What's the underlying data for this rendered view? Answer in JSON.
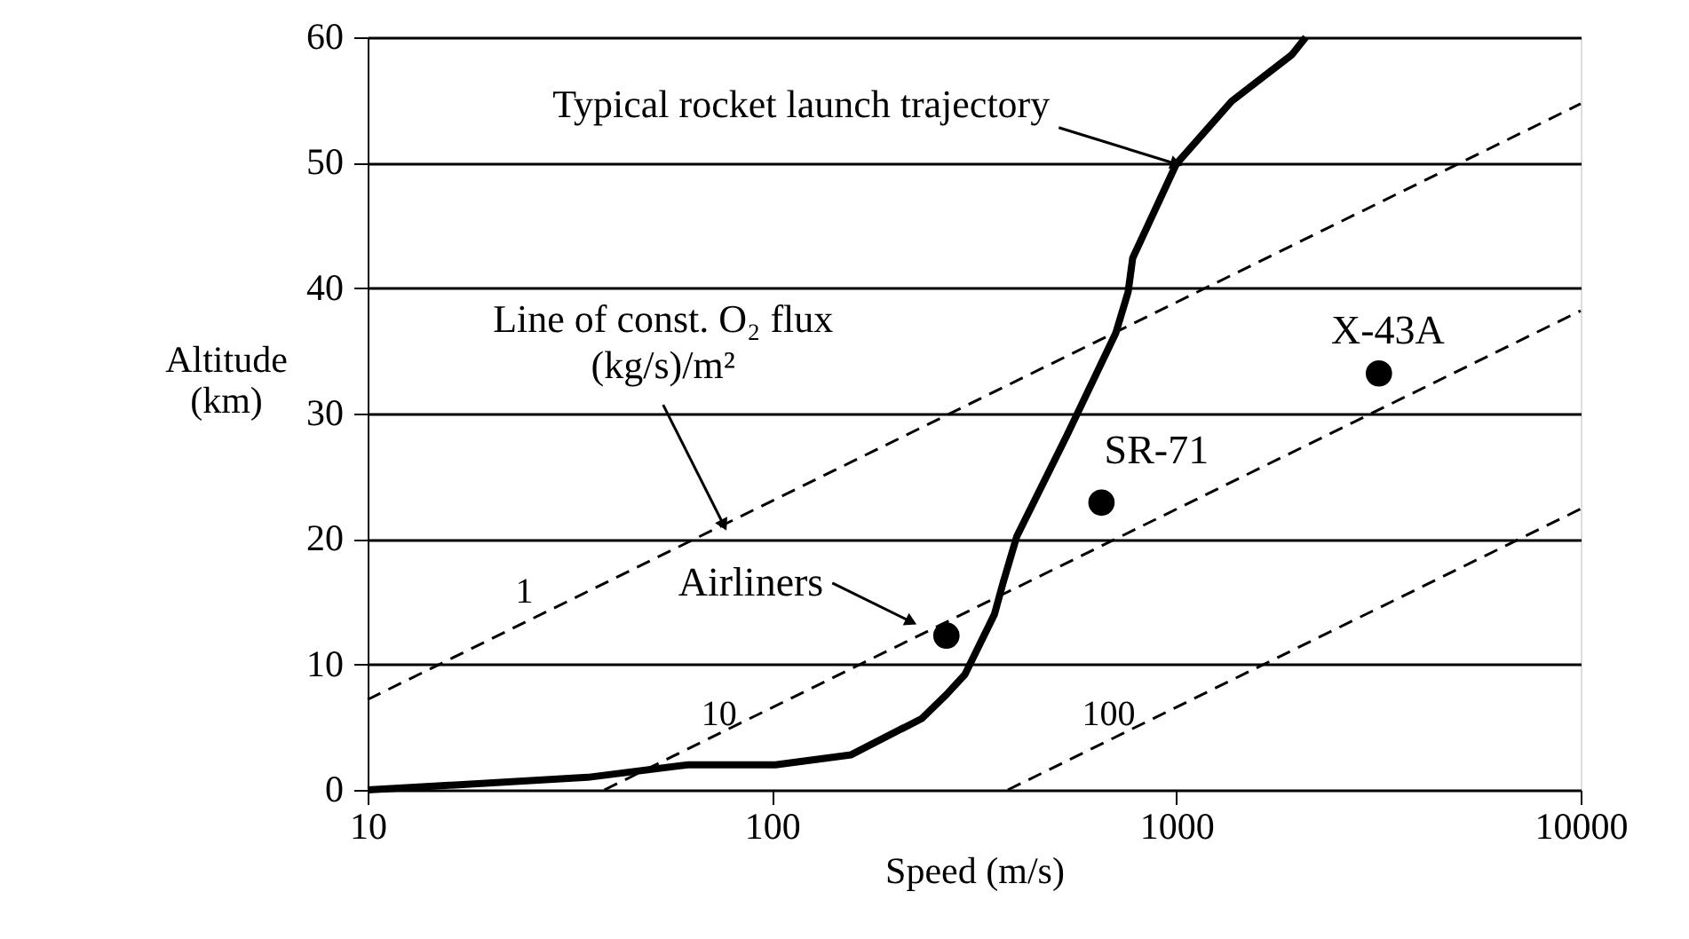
{
  "chart_data": {
    "type": "line",
    "xlabel": "Speed (m/s)",
    "ylabel": "Altitude (km)",
    "log": "x",
    "xlim": [
      10,
      10000
    ],
    "xticks": [
      10,
      100,
      1000,
      10000
    ],
    "ylim": [
      0,
      60
    ],
    "yticks": [
      0,
      10,
      20,
      30,
      40,
      50,
      60
    ],
    "grid": "y",
    "series": [
      {
        "color": "#000000",
        "line_style": "solid",
        "x": [
          10,
          35,
          62,
          102,
          157,
          235,
          270,
          300,
          355,
          372,
          403,
          537,
          708,
          760,
          780,
          1000,
          1370,
          1930,
          2090
        ],
        "values": [
          0,
          1,
          2,
          2,
          2.8,
          5.7,
          7.6,
          9.2,
          14,
          16.4,
          20.2,
          28.3,
          36.4,
          39.7,
          42.4,
          49.9,
          54.9,
          58.6,
          60
        ]
      },
      {
        "name": "1",
        "color": "#000000",
        "line_style": "dashed",
        "x": [
          10,
          10000
        ],
        "values": [
          7.2,
          54.7
        ]
      },
      {
        "name": "10",
        "color": "#000000",
        "line_style": "dashed",
        "x": [
          38.5,
          10000
        ],
        "values": [
          0,
          38.2
        ]
      },
      {
        "name": "100",
        "color": "#000000",
        "line_style": "dashed",
        "x": [
          383,
          10000
        ],
        "values": [
          0,
          22.4
        ]
      },
      {
        "type": "scatter",
        "marker": "circle",
        "color": "#000000",
        "x": [
          270,
          653,
          3170
        ],
        "values": [
          12.3,
          22.9,
          33.2
        ]
      }
    ],
    "annotations": [
      {
        "text": "Typical rocket launch trajectory",
        "x": 1000,
        "y": 49.9
      },
      {
        "text": "Line of const. O₂ flux\n(kg/s)/m²",
        "x": 76,
        "y": 21.1
      },
      {
        "text": "Airliners",
        "x": 221,
        "y": 13.4
      },
      {
        "text": "SR-71",
        "x": 653,
        "y": 22.9
      },
      {
        "text": "X-43A",
        "x": 3170,
        "y": 33.2
      }
    ]
  }
}
